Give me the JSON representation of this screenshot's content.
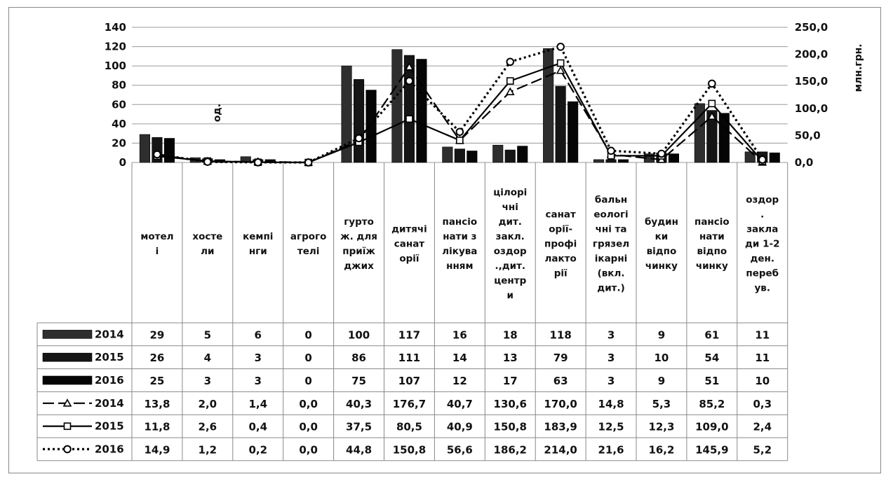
{
  "chart_data": {
    "type": "bar",
    "categories": [
      [
        "мотел",
        "і"
      ],
      [
        "хосте",
        "ли"
      ],
      [
        "кемпі",
        "нги"
      ],
      [
        "агрого",
        "телі"
      ],
      [
        "гурто",
        "ж. для",
        "приїж",
        "джих"
      ],
      [
        "дитячі",
        "санат",
        "орії"
      ],
      [
        "пансіо",
        "нати з",
        "лікува",
        "нням"
      ],
      [
        "цілорі",
        "чні",
        "дит.",
        "закл.",
        "оздор",
        ".,дит.",
        "центр",
        "и"
      ],
      [
        "санат",
        "орії-",
        "профі",
        "лакто",
        "рії"
      ],
      [
        "бальн",
        "еологі",
        "чні та",
        "грязел",
        "ікарні",
        "(вкл.",
        "дит.)"
      ],
      [
        "будин",
        "ки",
        "відпо",
        "чинку"
      ],
      [
        "пансіо",
        "нати",
        "відпо",
        "чинку"
      ],
      [
        "оздор",
        ".",
        "закла",
        "ди 1-2",
        "ден.",
        "переб",
        "ув."
      ]
    ],
    "series": [
      {
        "name": "2014",
        "kind": "bar",
        "axis": "left",
        "color": "#2e2e2e",
        "values": [
          29,
          5,
          6,
          0,
          100,
          117,
          16,
          18,
          118,
          3,
          9,
          61,
          11
        ]
      },
      {
        "name": "2015",
        "kind": "bar",
        "axis": "left",
        "color": "#151515",
        "values": [
          26,
          4,
          3,
          0,
          86,
          111,
          14,
          13,
          79,
          3,
          10,
          54,
          11
        ]
      },
      {
        "name": "2016",
        "kind": "bar",
        "axis": "left",
        "color": "#050505",
        "values": [
          25,
          3,
          3,
          0,
          75,
          107,
          12,
          17,
          63,
          3,
          9,
          51,
          10
        ]
      },
      {
        "name": "2014",
        "kind": "line",
        "axis": "right",
        "dash": "16 6",
        "marker": "triangle",
        "values": [
          13.8,
          2.0,
          1.4,
          0.0,
          40.3,
          176.7,
          40.7,
          130.6,
          170.0,
          14.8,
          5.3,
          85.2,
          0.3
        ]
      },
      {
        "name": "2015",
        "kind": "line",
        "axis": "right",
        "dash": "",
        "marker": "square",
        "values": [
          11.8,
          2.6,
          0.4,
          0.0,
          37.5,
          80.5,
          40.9,
          150.8,
          183.9,
          12.5,
          12.3,
          109.0,
          2.4
        ]
      },
      {
        "name": "2016",
        "kind": "line",
        "axis": "right",
        "dash": "3 4",
        "marker": "circle",
        "values": [
          14.9,
          1.2,
          0.2,
          0.0,
          44.8,
          150.8,
          56.6,
          186.2,
          214.0,
          21.6,
          16.2,
          145.9,
          5.2
        ]
      }
    ],
    "table_values": [
      [
        "29",
        "5",
        "6",
        "0",
        "100",
        "117",
        "16",
        "18",
        "118",
        "3",
        "9",
        "61",
        "11"
      ],
      [
        "26",
        "4",
        "3",
        "0",
        "86",
        "111",
        "14",
        "13",
        "79",
        "3",
        "10",
        "54",
        "11"
      ],
      [
        "25",
        "3",
        "3",
        "0",
        "75",
        "107",
        "12",
        "17",
        "63",
        "3",
        "9",
        "51",
        "10"
      ],
      [
        "13,8",
        "2,0",
        "1,4",
        "0,0",
        "40,3",
        "176,7",
        "40,7",
        "130,6",
        "170,0",
        "14,8",
        "5,3",
        "85,2",
        "0,3"
      ],
      [
        "11,8",
        "2,6",
        "0,4",
        "0,0",
        "37,5",
        "80,5",
        "40,9",
        "150,8",
        "183,9",
        "12,5",
        "12,3",
        "109,0",
        "2,4"
      ],
      [
        "14,9",
        "1,2",
        "0,2",
        "0,0",
        "44,8",
        "150,8",
        "56,6",
        "186,2",
        "214,0",
        "21,6",
        "16,2",
        "145,9",
        "5,2"
      ]
    ],
    "y_left": {
      "label": "од.",
      "ticks": [
        "0",
        "20",
        "40",
        "60",
        "80",
        "100",
        "120",
        "140"
      ],
      "range": [
        0,
        140
      ]
    },
    "y_right": {
      "label": "млн.грн.",
      "ticks": [
        "0,0",
        "50,0",
        "100,0",
        "150,0",
        "200,0",
        "250,0"
      ],
      "range": [
        0,
        250
      ]
    },
    "grid": true,
    "legend": "data-table"
  }
}
